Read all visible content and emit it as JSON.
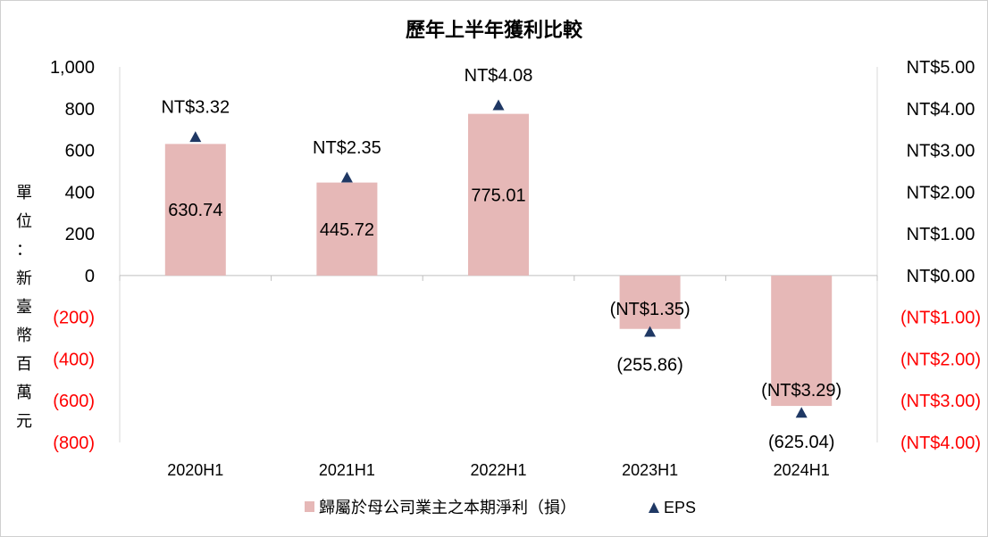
{
  "chart_data": {
    "type": "bar",
    "title": "歷年上半年獲利比較",
    "ylabel": "單位：新臺幣百萬元",
    "categories": [
      "2020H1",
      "2021H1",
      "2022H1",
      "2023H1",
      "2024H1"
    ],
    "ylim": [
      -800,
      1000
    ],
    "y_ticks": [
      1000,
      800,
      600,
      400,
      200,
      0,
      -200,
      -400,
      -600,
      -800
    ],
    "y_tick_labels": [
      "1,000",
      "800",
      "600",
      "400",
      "200",
      "0",
      "(200)",
      "(400)",
      "(600)",
      "(800)"
    ],
    "y2lim": [
      -4,
      5
    ],
    "y2_tick_labels": [
      "NT$5.00",
      "NT$4.00",
      "NT$3.00",
      "NT$2.00",
      "NT$1.00",
      "NT$0.00",
      "(NT$1.00)",
      "(NT$2.00)",
      "(NT$3.00)",
      "(NT$4.00)"
    ],
    "series": [
      {
        "name": "歸屬於母公司業主之本期淨利（損）",
        "type": "bar",
        "axis": "left",
        "color": "#e6b8b7",
        "values": [
          630.74,
          445.72,
          775.01,
          -255.86,
          -625.04
        ],
        "labels": [
          "630.74",
          "445.72",
          "775.01",
          "(255.86)",
          "(625.04)"
        ]
      },
      {
        "name": "EPS",
        "type": "marker",
        "marker": "triangle",
        "axis": "right",
        "color": "#1f3864",
        "values": [
          3.32,
          2.35,
          4.08,
          -1.35,
          -3.29
        ],
        "labels": [
          "NT$3.32",
          "NT$2.35",
          "NT$4.08",
          "(NT$1.35)",
          "(NT$3.29)"
        ]
      }
    ],
    "negative_color": "#ff0000",
    "legend_position": "bottom"
  }
}
